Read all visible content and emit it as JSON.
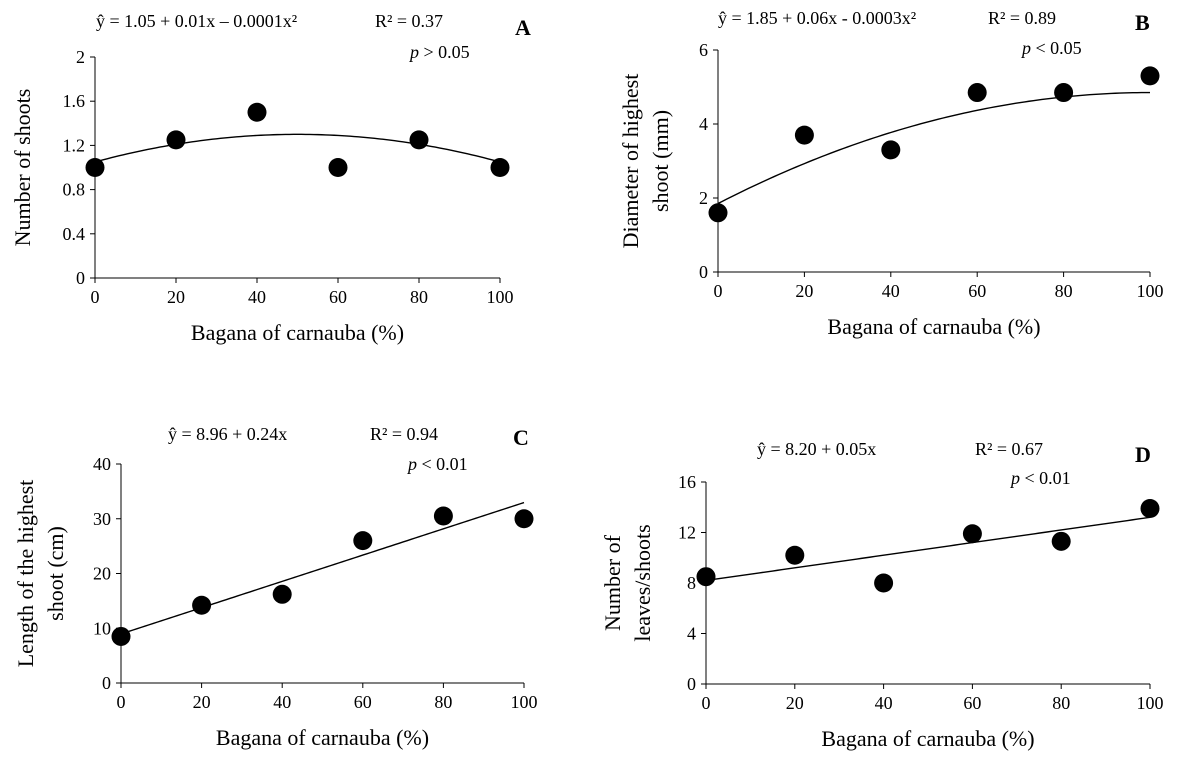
{
  "chart_data": [
    {
      "panel": "A",
      "type": "scatter",
      "x": [
        0,
        20,
        40,
        60,
        80,
        100
      ],
      "y": [
        1.0,
        1.25,
        1.5,
        1.0,
        1.25,
        1.0
      ],
      "fit": {
        "type": "polynomial",
        "coefficients": [
          1.05,
          0.01,
          -0.0001
        ]
      },
      "equation": "ŷ = 1.05 + 0.01x – 0.0001x²",
      "r2": "R² = 0.37",
      "p_prefix": "p",
      "p_rest": " > 0.05",
      "xlabel": "Bagana  of carnauba (%)",
      "ylabel": [
        "Number of shoots"
      ],
      "xlim": [
        0,
        100
      ],
      "ylim": [
        0,
        2
      ],
      "xticks": [
        0,
        20,
        40,
        60,
        80,
        100
      ],
      "yticks": [
        0,
        0.4,
        0.8,
        1.2,
        1.6,
        2
      ],
      "ytick_labels": [
        "0",
        "0.4",
        "0.8",
        "1.2",
        "1.6",
        "2"
      ]
    },
    {
      "panel": "B",
      "type": "scatter",
      "x": [
        0,
        20,
        40,
        60,
        80,
        100
      ],
      "y": [
        1.6,
        3.7,
        3.3,
        4.85,
        4.85,
        5.3
      ],
      "fit": {
        "type": "polynomial",
        "coefficients": [
          1.85,
          0.06,
          -0.0003
        ]
      },
      "equation": "ŷ = 1.85 + 0.06x - 0.0003x²",
      "r2": "R² = 0.89",
      "p_prefix": "p",
      "p_rest": " < 0.05",
      "xlabel": "Bagana  of carnauba (%)",
      "ylabel": [
        "Diameter of highest",
        "shoot (mm)"
      ],
      "xlim": [
        0,
        100
      ],
      "ylim": [
        0,
        6
      ],
      "xticks": [
        0,
        20,
        40,
        60,
        80,
        100
      ],
      "yticks": [
        0,
        2,
        4,
        6
      ],
      "ytick_labels": [
        "0",
        "2",
        "4",
        "6"
      ]
    },
    {
      "panel": "C",
      "type": "scatter",
      "x": [
        0,
        20,
        40,
        60,
        80,
        100
      ],
      "y": [
        8.5,
        14.2,
        16.2,
        26.0,
        30.5,
        30.0
      ],
      "fit": {
        "type": "polynomial",
        "coefficients": [
          8.96,
          0.24
        ]
      },
      "equation": "ŷ = 8.96 + 0.24x",
      "r2": "R² = 0.94",
      "p_prefix": "p",
      "p_rest": " < 0.01",
      "xlabel": "Bagana  of carnauba (%)",
      "ylabel": [
        "Length of the highest",
        "shoot (cm)"
      ],
      "xlim": [
        0,
        100
      ],
      "ylim": [
        0,
        40
      ],
      "xticks": [
        0,
        20,
        40,
        60,
        80,
        100
      ],
      "yticks": [
        0,
        10,
        20,
        30,
        40
      ],
      "ytick_labels": [
        "0",
        "10",
        "20",
        "30",
        "40"
      ]
    },
    {
      "panel": "D",
      "type": "scatter",
      "x": [
        0,
        20,
        40,
        60,
        80,
        100
      ],
      "y": [
        8.5,
        10.2,
        8.0,
        11.9,
        11.3,
        13.9
      ],
      "fit": {
        "type": "polynomial",
        "coefficients": [
          8.2,
          0.05
        ]
      },
      "equation": "ŷ = 8.20 + 0.05x",
      "r2": "R² = 0.67",
      "p_prefix": "p",
      "p_rest": " < 0.01",
      "xlabel": "Bagana  of carnauba (%)",
      "ylabel": [
        "Number of",
        "leaves/shoots"
      ],
      "xlim": [
        0,
        100
      ],
      "ylim": [
        0,
        16
      ],
      "xticks": [
        0,
        20,
        40,
        60,
        80,
        100
      ],
      "yticks": [
        0,
        4,
        8,
        12,
        16
      ],
      "ytick_labels": [
        "0",
        "4",
        "8",
        "12",
        "16"
      ]
    }
  ]
}
